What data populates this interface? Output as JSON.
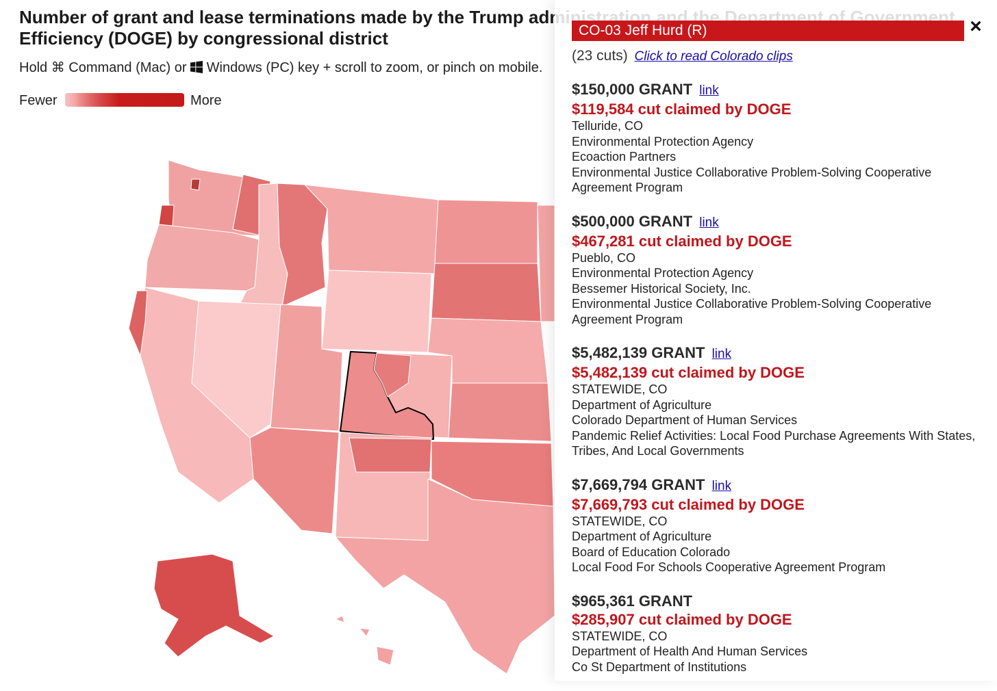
{
  "title": "Number of grant and lease terminations made by the Trump administration and the Department of Government Efficiency (DOGE) by congressional district",
  "instructions": {
    "hold": "Hold",
    "mac_symbol": "⌘",
    "mac_key": "Command (Mac) or",
    "win_key": "Windows (PC) key + scroll to zoom, or pinch on mobile."
  },
  "legend": {
    "low": "Fewer",
    "high": "More"
  },
  "colors": {
    "accent": "#c8171b",
    "cut_text": "#c0161b",
    "link": "#1a0dab",
    "scale": [
      "#f9c3c3",
      "#f5adad",
      "#f09c9c",
      "#e98383",
      "#e06d6d",
      "#d44545",
      "#cc3232"
    ]
  },
  "map": {
    "selected_district": "CO-03",
    "highlight_color": "#000000"
  },
  "panel": {
    "header": "CO-03 Jeff Hurd (R)",
    "cuts_count": "(23 cuts)",
    "clips_link": "Click to read Colorado clips",
    "close_icon": "×",
    "entries": [
      {
        "grant": "$150,000 GRANT",
        "link": "link",
        "cut": "$119,584 cut claimed by DOGE",
        "lines": [
          "Telluride, CO",
          "Environmental Protection Agency",
          "Ecoaction Partners",
          "Environmental Justice Collaborative Problem-Solving Cooperative Agreement Program"
        ]
      },
      {
        "grant": "$500,000 GRANT",
        "link": "link",
        "cut": "$467,281 cut claimed by DOGE",
        "lines": [
          "Pueblo, CO",
          "Environmental Protection Agency",
          "Bessemer Historical Society, Inc.",
          "Environmental Justice Collaborative Problem-Solving Cooperative Agreement Program"
        ]
      },
      {
        "grant": "$5,482,139 GRANT",
        "link": "link",
        "cut": "$5,482,139 cut claimed by DOGE",
        "lines": [
          "STATEWIDE, CO",
          "Department of Agriculture",
          "Colorado Department of Human Services",
          "Pandemic Relief Activities: Local Food Purchase Agreements With States, Tribes, And Local Governments"
        ]
      },
      {
        "grant": "$7,669,794 GRANT",
        "link": "link",
        "cut": "$7,669,793 cut claimed by DOGE",
        "lines": [
          "STATEWIDE, CO",
          "Department of Agriculture",
          "Board of Education Colorado",
          "Local Food For Schools Cooperative Agreement Program"
        ]
      },
      {
        "grant": "$965,361 GRANT",
        "link": "",
        "cut": "$285,907 cut claimed by DOGE",
        "lines": [
          "STATEWIDE, CO",
          "Department of Health And Human Services",
          "Co St Department of Institutions"
        ]
      }
    ]
  }
}
